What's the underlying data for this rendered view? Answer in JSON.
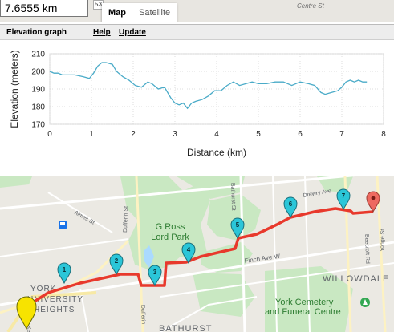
{
  "route": {
    "distance_value": "7.6555 km"
  },
  "map_type": {
    "map_label": "Map",
    "satellite_label": "Satellite"
  },
  "top_strip": {
    "road_label": "Centre St",
    "partial_number": "53"
  },
  "elevation": {
    "title": "Elevation graph",
    "help_label": "Help",
    "update_label": "Update"
  },
  "chart_data": {
    "type": "line",
    "title": "",
    "xlabel": "Distance (km)",
    "ylabel": "Elevation (meters)",
    "xlim": [
      0,
      8
    ],
    "ylim": [
      170,
      210
    ],
    "x_ticks": [
      0,
      1,
      2,
      3,
      4,
      5,
      6,
      7,
      8
    ],
    "y_ticks": [
      170,
      180,
      190,
      200,
      210
    ],
    "grid": true,
    "line_color": "#4aabc8",
    "series": [
      {
        "x": [
          0,
          0.1,
          0.2,
          0.3,
          0.4,
          0.6,
          0.8,
          0.95,
          1.05,
          1.15,
          1.25,
          1.35,
          1.5,
          1.6,
          1.75,
          1.9,
          2.05,
          2.2,
          2.35,
          2.45,
          2.6,
          2.75,
          2.9,
          3.0,
          3.1,
          3.2,
          3.3,
          3.4,
          3.5,
          3.65,
          3.8,
          3.95,
          4.1,
          4.25,
          4.4,
          4.55,
          4.7,
          4.85,
          5.0,
          5.2,
          5.4,
          5.6,
          5.8,
          6.0,
          6.2,
          6.35,
          6.5,
          6.6,
          6.75,
          6.9,
          7.0,
          7.1,
          7.2,
          7.3,
          7.4,
          7.5,
          7.6
        ],
        "y": [
          200,
          199,
          199,
          198,
          198,
          198,
          197,
          196,
          199,
          203,
          205,
          205,
          204,
          200,
          197,
          195,
          192,
          191,
          194,
          193,
          190,
          191,
          185,
          182,
          181,
          182,
          179,
          182,
          183,
          184,
          186,
          189,
          189,
          192,
          194,
          192,
          193,
          194,
          193,
          193,
          194,
          194,
          192,
          194,
          193,
          192,
          188,
          187,
          188,
          189,
          191,
          194,
          195,
          194,
          195,
          194,
          194
        ]
      }
    ]
  },
  "map": {
    "labels": {
      "aimes": "Almes St",
      "dufferin_top": "Dufferin St",
      "g_ross_line1": "G Ross",
      "g_ross_line2": "Lord Park",
      "bathurst_st": "Bathurst St",
      "drewry": "Drewry Ave",
      "finch": "Finch Ave W",
      "willowdale": "WILLOWDALE",
      "york_uni_1": "YORK",
      "york_uni_2": "UNIVERSITY",
      "york_uni_3": "HEIGHTS",
      "york_cem_1": "York Cemetery",
      "york_cem_2": "and Funeral Centre",
      "beecroft": "Beecroft Rd",
      "yonge": "Yonge St",
      "bathurst_bottom": "BATHURST",
      "dufferin_bottom": "Dufferin",
      "ke": "Ke"
    },
    "route_color": "#e8392c",
    "markers": [
      {
        "label": "1",
        "color": "#2bc6d8"
      },
      {
        "label": "2",
        "color": "#2bc6d8"
      },
      {
        "label": "3",
        "color": "#2bc6d8"
      },
      {
        "label": "4",
        "color": "#2bc6d8"
      },
      {
        "label": "5",
        "color": "#2bc6d8"
      },
      {
        "label": "6",
        "color": "#2bc6d8"
      },
      {
        "label": "7",
        "color": "#2bc6d8"
      }
    ],
    "start_marker_color": "#f7e300",
    "end_marker_color": "#ee6a5f"
  }
}
